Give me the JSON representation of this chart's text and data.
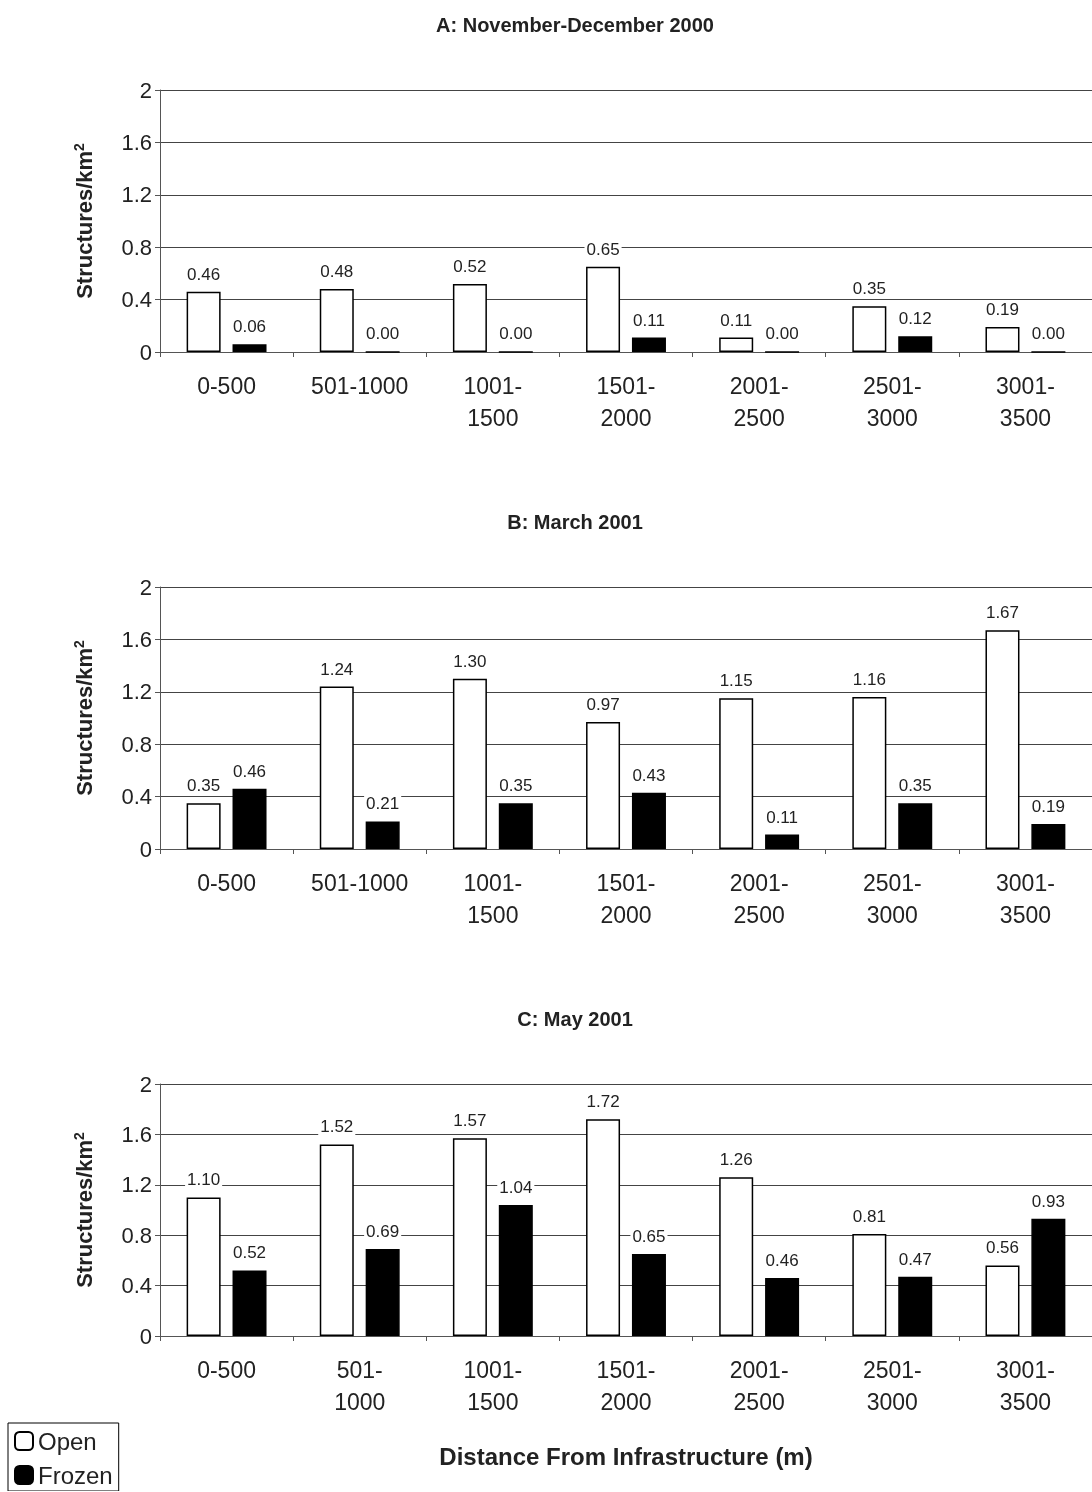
{
  "chart_data": [
    {
      "type": "bar",
      "title": "A: November-December 2000",
      "ylabel": "Structures/km$^{2}$",
      "categories": [
        "0-500",
        "501-1000",
        "1001-\n1500",
        "1501-\n2000",
        "2001-\n2500",
        "2501-\n3000",
        "3001-\n3500"
      ],
      "series": [
        {
          "color": "#ffffff",
          "values": [
            0.46,
            0.48,
            0.52,
            0.65,
            0.11,
            0.35,
            0.19
          ],
          "value_labels": [
            "0.46",
            "0.48",
            "0.52",
            "0.65",
            "0.11",
            "0.35",
            "0.19"
          ]
        },
        {
          "color": "#000000",
          "values": [
            0.06,
            0,
            0,
            0.11,
            0,
            0.12,
            0
          ],
          "value_labels": [
            "0.06",
            "0.00",
            "0.00",
            "0.11",
            "0.00",
            "0.12",
            "0.00"
          ]
        }
      ],
      "ylim": [
        0,
        2
      ],
      "yticks": [
        0,
        0.4,
        0.8,
        1.2,
        1.6,
        2
      ],
      "grid": "y",
      "legend": false
    },
    {
      "type": "bar",
      "title": "B: March 2001",
      "ylabel": "Structures/km$^{2}$",
      "categories": [
        "0-500",
        "501-1000",
        "1001-\n1500",
        "1501-\n2000",
        "2001-\n2500",
        "2501-\n3000",
        "3001-\n3500"
      ],
      "series": [
        {
          "color": "#ffffff",
          "values": [
            0.35,
            1.24,
            1.3,
            0.97,
            1.15,
            1.16,
            1.67
          ],
          "value_labels": [
            "0.35",
            "1.24",
            "1.30",
            "0.97",
            "1.15",
            "1.16",
            "1.67"
          ]
        },
        {
          "color": "#000000",
          "values": [
            0.46,
            0.21,
            0.35,
            0.43,
            0.11,
            0.35,
            0.19
          ],
          "value_labels": [
            "0.46",
            "0.21",
            "0.35",
            "0.43",
            "0.11",
            "0.35",
            "0.19"
          ]
        }
      ],
      "ylim": [
        0,
        2
      ],
      "yticks": [
        0,
        0.4,
        0.8,
        1.2,
        1.6,
        2
      ],
      "grid": "y",
      "legend": false
    },
    {
      "type": "bar",
      "title": "C: May 2001",
      "ylabel": "Structures/km$^{2}$",
      "xlabel": "Distance From Infrastructure (m)",
      "categories": [
        "0-500",
        "501-\n1000",
        "1001-\n1500",
        "1501-\n2000",
        "2001-\n2500",
        "2501-\n3000",
        "3001-\n3500"
      ],
      "series": [
        {
          "name": "Open",
          "color": "#ffffff",
          "values": [
            1.1,
            1.52,
            1.57,
            1.72,
            1.26,
            0.81,
            0.56
          ],
          "value_labels": [
            "1.10",
            "1.52",
            "1.57",
            "1.72",
            "1.26",
            "0.81",
            "0.56"
          ]
        },
        {
          "name": "Frozen",
          "color": "#000000",
          "values": [
            0.52,
            0.69,
            1.04,
            0.65,
            0.46,
            0.47,
            0.93
          ],
          "value_labels": [
            "0.52",
            "0.69",
            "1.04",
            "0.65",
            "0.46",
            "0.47",
            "0.93"
          ]
        }
      ],
      "ylim": [
        0,
        2
      ],
      "yticks": [
        0,
        0.4,
        0.8,
        1.2,
        1.6,
        2
      ],
      "grid": "y",
      "legend": "bottom left"
    }
  ]
}
